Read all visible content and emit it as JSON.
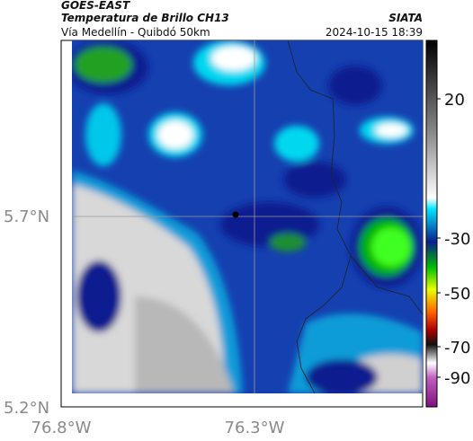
{
  "header": {
    "satellite": "GOES-EAST",
    "product": "Temperatura de Brillo CH13",
    "region": "Vía Medellín - Quibdó 50km",
    "source": "SIATA",
    "timestamp": "2024-10-15 18:39"
  },
  "map": {
    "lat_labels": [
      "5.7°N",
      "5.2°N"
    ],
    "lon_labels": [
      "76.8°W",
      "76.3°W"
    ]
  },
  "colorbar": {
    "ticks": [
      20,
      -30,
      -50,
      -70,
      -90
    ]
  }
}
